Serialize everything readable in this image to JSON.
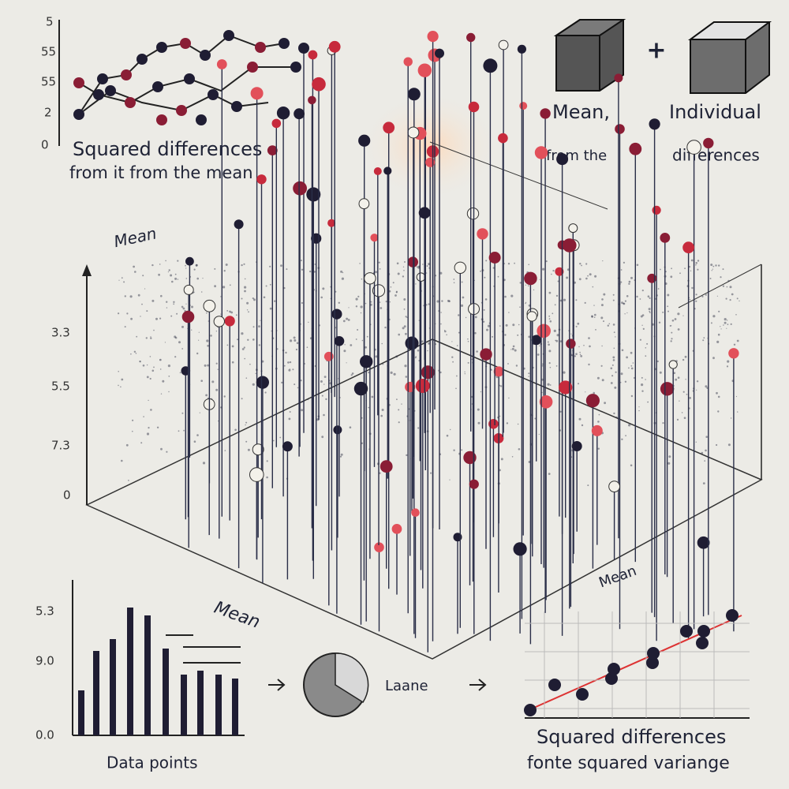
{
  "top_left_chart": {
    "ticks": [
      "5",
      "55",
      "55",
      "2",
      "0"
    ],
    "caption": [
      "Squared differences",
      "from it from the mean"
    ]
  },
  "legend": {
    "plus": "+",
    "labels": [
      "Mean,",
      "Individual"
    ],
    "sublabels": [
      "from the",
      "differences"
    ]
  },
  "main": {
    "label": "Mean",
    "ticks": [
      "3.3",
      "5.5",
      "7.3",
      "0"
    ],
    "floor_labels": [
      "Mean",
      "Mean"
    ]
  },
  "bar_inset": {
    "ticks": [
      "5.3",
      "9.0",
      "0.0"
    ],
    "caption": "Data points"
  },
  "pie_label": "Laane",
  "line_inset": {
    "caption": [
      "Squared differences",
      "fonte squared variange"
    ]
  }
}
